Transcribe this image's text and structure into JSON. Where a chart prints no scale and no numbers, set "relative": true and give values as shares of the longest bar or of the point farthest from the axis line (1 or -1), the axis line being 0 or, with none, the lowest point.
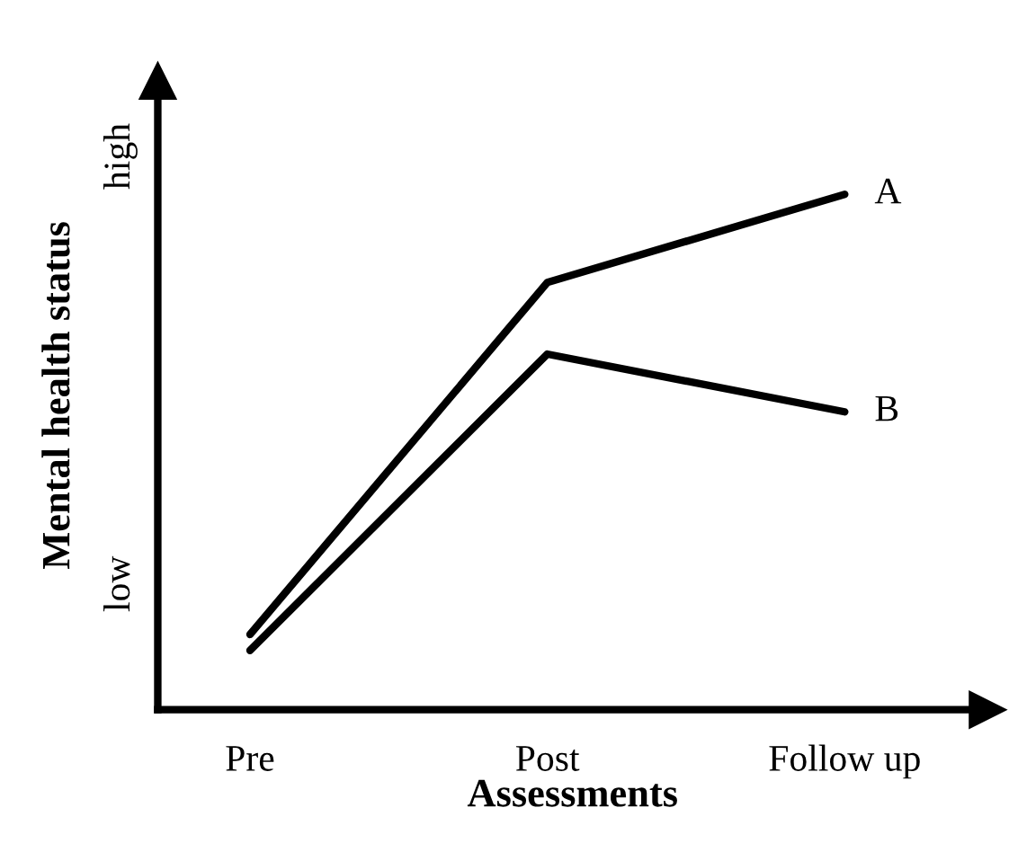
{
  "chart_data": {
    "type": "line",
    "relative": true,
    "xlabel": "Assessments",
    "ylabel": "Mental health status",
    "categories": [
      "Pre",
      "Post",
      "Follow up"
    ],
    "series": [
      {
        "name": "A",
        "color": "#000000",
        "values": [
          0.146,
          0.829,
          1
        ]
      },
      {
        "name": "B",
        "color": "#000000",
        "values": [
          0.115,
          0.69,
          0.578
        ]
      }
    ],
    "annotations": [
      "low",
      "high"
    ],
    "legend": false,
    "grid": false,
    "marker": "none",
    "line_style": "solid"
  }
}
